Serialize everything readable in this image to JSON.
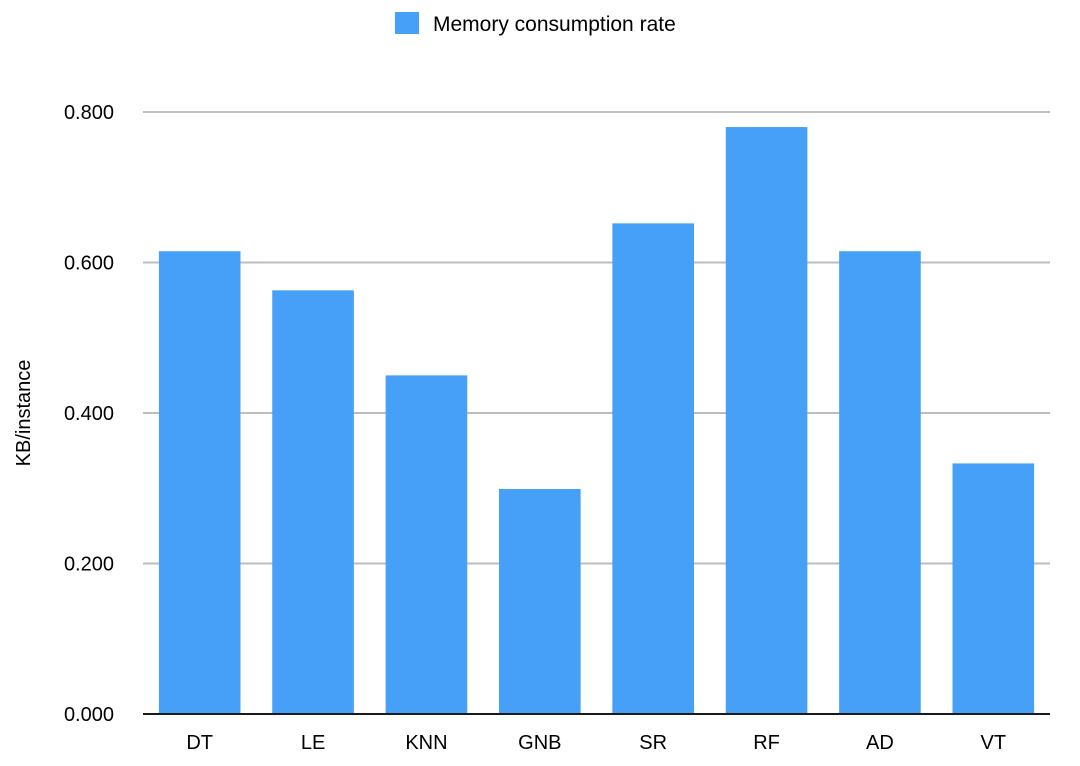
{
  "chart_data": {
    "type": "bar",
    "categories": [
      "DT",
      "LE",
      "KNN",
      "GNB",
      "SR",
      "RF",
      "AD",
      "VT"
    ],
    "series": [
      {
        "name": "Memory consumption rate",
        "values": [
          0.615,
          0.563,
          0.45,
          0.299,
          0.652,
          0.78,
          0.615,
          0.333
        ],
        "color": "#46a0f7"
      }
    ],
    "title": "",
    "xlabel": "",
    "ylabel": "KB/instance",
    "ylim": [
      0,
      0.8
    ],
    "yticks": [
      "0.000",
      "0.200",
      "0.400",
      "0.600",
      "0.800"
    ],
    "grid": true,
    "legend_position": "top-center"
  }
}
